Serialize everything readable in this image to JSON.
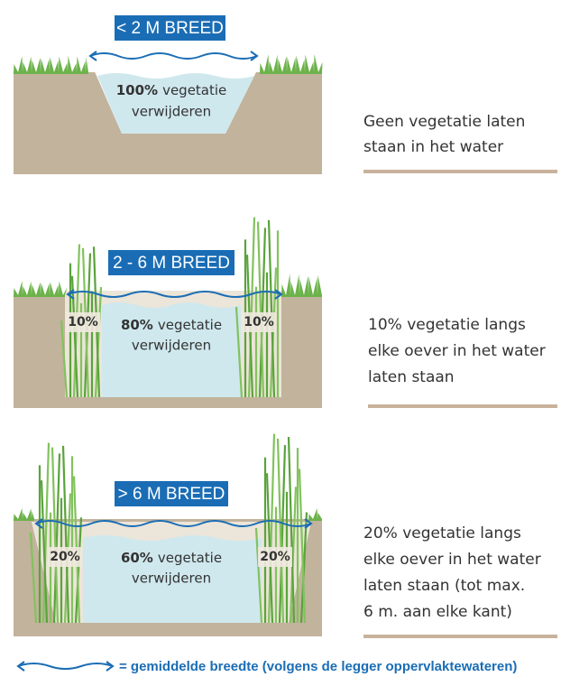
{
  "panels": [
    {
      "width_label": "< 2 M BREED",
      "center_pct": "100%",
      "center_lines": [
        "vegetatie",
        "verwijderen"
      ],
      "side_labels": [],
      "description": [
        "Geen vegetatie laten",
        "staan in het water"
      ]
    },
    {
      "width_label": "2 - 6 M BREED",
      "center_pct": "80%",
      "center_lines": [
        "vegetatie",
        "verwijderen"
      ],
      "side_labels": [
        "10%",
        "10%"
      ],
      "description": [
        "10% vegetatie langs",
        "elke oever in het water",
        "laten staan"
      ]
    },
    {
      "width_label": "> 6 M BREED",
      "center_pct": "60%",
      "center_lines": [
        "vegetatie",
        "verwijderen"
      ],
      "side_labels": [
        "20%",
        "20%"
      ],
      "description": [
        "20% vegetatie langs",
        "elke oever in het water",
        "laten staan (tot max.",
        "6 m. aan elke kant)"
      ]
    }
  ],
  "legend": {
    "text": "= gemiddelde breedte (volgens de legger oppervlaktewateren)"
  }
}
